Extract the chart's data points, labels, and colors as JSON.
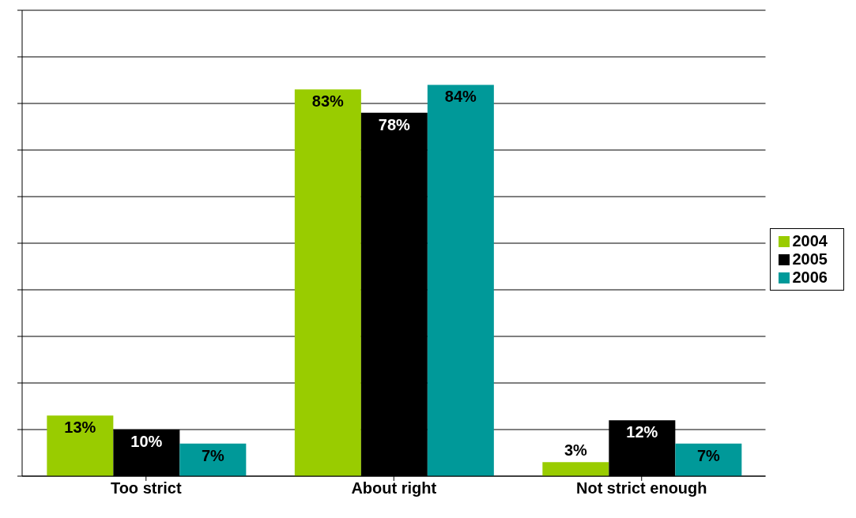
{
  "chart_data": {
    "type": "bar",
    "categories": [
      "Too strict",
      "About right",
      "Not strict enough"
    ],
    "series": [
      {
        "name": "2004",
        "color": "#99cc00",
        "values": [
          13,
          83,
          3
        ],
        "value_labels": [
          "13%",
          "83%",
          "3%"
        ]
      },
      {
        "name": "2005",
        "color": "#000000",
        "values": [
          10,
          78,
          12
        ],
        "value_labels": [
          "10%",
          "78%",
          "12%"
        ]
      },
      {
        "name": "2006",
        "color": "#009999",
        "values": [
          7,
          84,
          7
        ],
        "value_labels": [
          "7%",
          "84%",
          "7%"
        ]
      }
    ],
    "ylim": [
      0,
      100
    ],
    "yticks": [
      {
        "value": 0,
        "label": null
      },
      {
        "value": 10,
        "label": null
      },
      {
        "value": 20,
        "label": null
      },
      {
        "value": 30,
        "label": null
      },
      {
        "value": 40,
        "label": null
      },
      {
        "value": 50,
        "label": null
      },
      {
        "value": 60,
        "label": null
      },
      {
        "value": 70,
        "label": null
      },
      {
        "value": 80,
        "label": null
      },
      {
        "value": 90,
        "label": null
      },
      {
        "value": 100,
        "label": null
      }
    ],
    "tick_labels": "x",
    "grid": "y",
    "legend": "right"
  }
}
